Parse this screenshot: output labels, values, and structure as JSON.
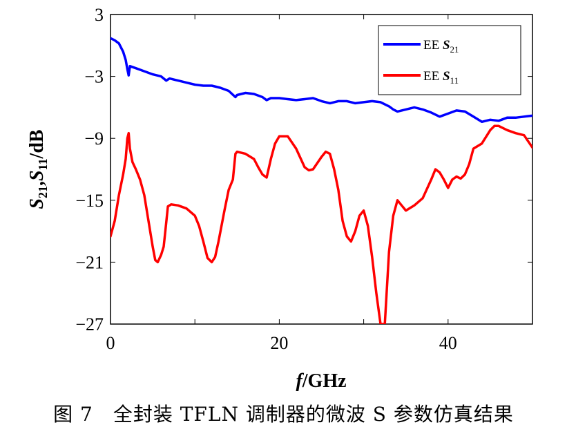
{
  "caption": "图 7　全封装 TFLN 调制器的微波 S 参数仿真结果",
  "chart_data": {
    "type": "line",
    "xlabel_italic": "f",
    "xlabel_rest": "/GHz",
    "ylabel": "S21,S11/dB",
    "xlim": [
      0,
      50
    ],
    "ylim": [
      -27,
      3
    ],
    "xticks": [
      "0",
      "20",
      "40"
    ],
    "yticks": [
      "3",
      "−3",
      "−9",
      "−15",
      "−21",
      "−27"
    ],
    "legend_placement": "top-right",
    "grid": false,
    "series": [
      {
        "name": "EE S21",
        "legend_prefix": "EE ",
        "legend_sym": "S",
        "legend_sub": "21",
        "color": "#0000ff",
        "points": [
          [
            0,
            0.7
          ],
          [
            0.5,
            0.5
          ],
          [
            1,
            0.2
          ],
          [
            1.5,
            -0.6
          ],
          [
            1.8,
            -1.4
          ],
          [
            2,
            -2.3
          ],
          [
            2.15,
            -2.9
          ],
          [
            2.3,
            -2.0
          ],
          [
            3,
            -2.2
          ],
          [
            4,
            -2.5
          ],
          [
            5,
            -2.8
          ],
          [
            6,
            -3.0
          ],
          [
            6.6,
            -3.4
          ],
          [
            7,
            -3.2
          ],
          [
            8,
            -3.4
          ],
          [
            9,
            -3.6
          ],
          [
            10,
            -3.8
          ],
          [
            11,
            -3.9
          ],
          [
            12,
            -3.9
          ],
          [
            13,
            -4.1
          ],
          [
            14,
            -4.4
          ],
          [
            14.8,
            -5.0
          ],
          [
            15,
            -4.8
          ],
          [
            16,
            -4.6
          ],
          [
            17,
            -4.7
          ],
          [
            18,
            -5.0
          ],
          [
            18.5,
            -5.3
          ],
          [
            19,
            -5.1
          ],
          [
            20,
            -5.1
          ],
          [
            21,
            -5.2
          ],
          [
            22,
            -5.3
          ],
          [
            23,
            -5.2
          ],
          [
            24,
            -5.1
          ],
          [
            25,
            -5.4
          ],
          [
            26,
            -5.6
          ],
          [
            27,
            -5.4
          ],
          [
            28,
            -5.4
          ],
          [
            29,
            -5.6
          ],
          [
            30,
            -5.5
          ],
          [
            31,
            -5.4
          ],
          [
            32,
            -5.5
          ],
          [
            33,
            -5.9
          ],
          [
            33.5,
            -6.2
          ],
          [
            34,
            -6.4
          ],
          [
            35,
            -6.2
          ],
          [
            36,
            -6.0
          ],
          [
            37,
            -6.2
          ],
          [
            38,
            -6.5
          ],
          [
            39,
            -6.9
          ],
          [
            40,
            -6.6
          ],
          [
            41,
            -6.3
          ],
          [
            42,
            -6.4
          ],
          [
            43,
            -6.9
          ],
          [
            44,
            -7.4
          ],
          [
            45,
            -7.2
          ],
          [
            46,
            -7.3
          ],
          [
            47,
            -7.0
          ],
          [
            48,
            -7.0
          ],
          [
            49,
            -6.9
          ],
          [
            50,
            -6.8
          ]
        ]
      },
      {
        "name": "EE S11",
        "legend_prefix": "EE ",
        "legend_sym": "S",
        "legend_sub": "11",
        "color": "#ff0000",
        "points": [
          [
            0,
            -18.5
          ],
          [
            0.5,
            -17.0
          ],
          [
            1,
            -14.5
          ],
          [
            1.5,
            -12.5
          ],
          [
            1.8,
            -11.0
          ],
          [
            2,
            -9.0
          ],
          [
            2.15,
            -8.5
          ],
          [
            2.3,
            -10.0
          ],
          [
            2.6,
            -11.3
          ],
          [
            3,
            -12.0
          ],
          [
            3.5,
            -13.0
          ],
          [
            4,
            -14.5
          ],
          [
            4.5,
            -17.0
          ],
          [
            5,
            -19.5
          ],
          [
            5.3,
            -20.8
          ],
          [
            5.6,
            -21.0
          ],
          [
            6,
            -20.3
          ],
          [
            6.3,
            -19.5
          ],
          [
            6.5,
            -18.0
          ],
          [
            6.8,
            -15.6
          ],
          [
            7.2,
            -15.4
          ],
          [
            8,
            -15.5
          ],
          [
            9,
            -15.8
          ],
          [
            10,
            -16.5
          ],
          [
            10.5,
            -17.5
          ],
          [
            11,
            -19.0
          ],
          [
            11.5,
            -20.6
          ],
          [
            12,
            -21.0
          ],
          [
            12.4,
            -20.5
          ],
          [
            12.8,
            -19.0
          ],
          [
            13.5,
            -16.0
          ],
          [
            14,
            -14.0
          ],
          [
            14.5,
            -13.0
          ],
          [
            14.8,
            -10.5
          ],
          [
            15,
            -10.3
          ],
          [
            16,
            -10.5
          ],
          [
            17,
            -11.0
          ],
          [
            17.5,
            -11.8
          ],
          [
            18,
            -12.5
          ],
          [
            18.5,
            -12.8
          ],
          [
            19,
            -11.0
          ],
          [
            19.5,
            -9.5
          ],
          [
            20,
            -8.8
          ],
          [
            21,
            -8.8
          ],
          [
            22,
            -10.0
          ],
          [
            23,
            -11.8
          ],
          [
            23.5,
            -12.1
          ],
          [
            24,
            -12.0
          ],
          [
            25,
            -10.8
          ],
          [
            25.5,
            -10.3
          ],
          [
            26,
            -10.5
          ],
          [
            26.5,
            -12.0
          ],
          [
            27,
            -14.0
          ],
          [
            27.5,
            -17.0
          ],
          [
            28,
            -18.5
          ],
          [
            28.5,
            -19.0
          ],
          [
            29,
            -18.0
          ],
          [
            29.5,
            -16.5
          ],
          [
            30,
            -16.0
          ],
          [
            30.5,
            -17.5
          ],
          [
            31,
            -20.5
          ],
          [
            31.5,
            -24.0
          ],
          [
            32,
            -27.0
          ],
          [
            32.5,
            -27.0
          ],
          [
            33,
            -20.0
          ],
          [
            33.5,
            -16.5
          ],
          [
            34,
            -15.0
          ],
          [
            34.5,
            -15.5
          ],
          [
            35,
            -16.0
          ],
          [
            36,
            -15.5
          ],
          [
            37,
            -14.8
          ],
          [
            38,
            -13.0
          ],
          [
            38.5,
            -12.0
          ],
          [
            39,
            -12.3
          ],
          [
            39.5,
            -13.0
          ],
          [
            40,
            -13.8
          ],
          [
            40.5,
            -13.0
          ],
          [
            41,
            -12.7
          ],
          [
            41.5,
            -12.9
          ],
          [
            42,
            -12.5
          ],
          [
            42.5,
            -11.5
          ],
          [
            43,
            -10.0
          ],
          [
            44,
            -9.5
          ],
          [
            45,
            -8.2
          ],
          [
            45.5,
            -7.8
          ],
          [
            46,
            -7.8
          ],
          [
            47,
            -8.2
          ],
          [
            48,
            -8.5
          ],
          [
            49,
            -8.7
          ],
          [
            49.5,
            -9.3
          ],
          [
            50,
            -9.9
          ]
        ]
      }
    ]
  }
}
